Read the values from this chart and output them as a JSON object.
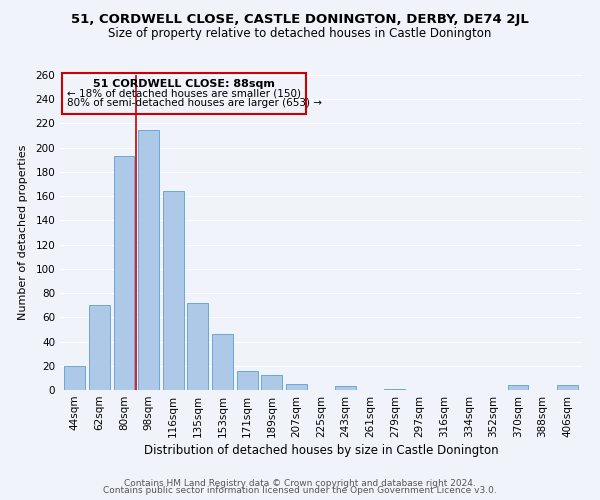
{
  "title": "51, CORDWELL CLOSE, CASTLE DONINGTON, DERBY, DE74 2JL",
  "subtitle": "Size of property relative to detached houses in Castle Donington",
  "xlabel": "Distribution of detached houses by size in Castle Donington",
  "ylabel": "Number of detached properties",
  "categories": [
    "44sqm",
    "62sqm",
    "80sqm",
    "98sqm",
    "116sqm",
    "135sqm",
    "153sqm",
    "171sqm",
    "189sqm",
    "207sqm",
    "225sqm",
    "243sqm",
    "261sqm",
    "279sqm",
    "297sqm",
    "316sqm",
    "334sqm",
    "352sqm",
    "370sqm",
    "388sqm",
    "406sqm"
  ],
  "values": [
    20,
    70,
    193,
    215,
    164,
    72,
    46,
    16,
    12,
    5,
    0,
    3,
    0,
    1,
    0,
    0,
    0,
    0,
    4,
    0,
    4
  ],
  "bar_color": "#aec8e8",
  "bar_edge_color": "#5a9fd4",
  "highlight_color": "#cc0000",
  "ylim": [
    0,
    260
  ],
  "yticks": [
    0,
    20,
    40,
    60,
    80,
    100,
    120,
    140,
    160,
    180,
    200,
    220,
    240,
    260
  ],
  "annotation_title": "51 CORDWELL CLOSE: 88sqm",
  "annotation_line1": "← 18% of detached houses are smaller (150)",
  "annotation_line2": "80% of semi-detached houses are larger (653) →",
  "footer1": "Contains HM Land Registry data © Crown copyright and database right 2024.",
  "footer2": "Contains public sector information licensed under the Open Government Licence v3.0.",
  "background_color": "#f0f4fa",
  "grid_color": "#ffffff",
  "title_fontsize": 9.5,
  "subtitle_fontsize": 8.5,
  "xlabel_fontsize": 8.5,
  "ylabel_fontsize": 8,
  "tick_fontsize": 7.5,
  "annotation_title_fontsize": 8,
  "annotation_fontsize": 7.5,
  "footer_fontsize": 6.5
}
